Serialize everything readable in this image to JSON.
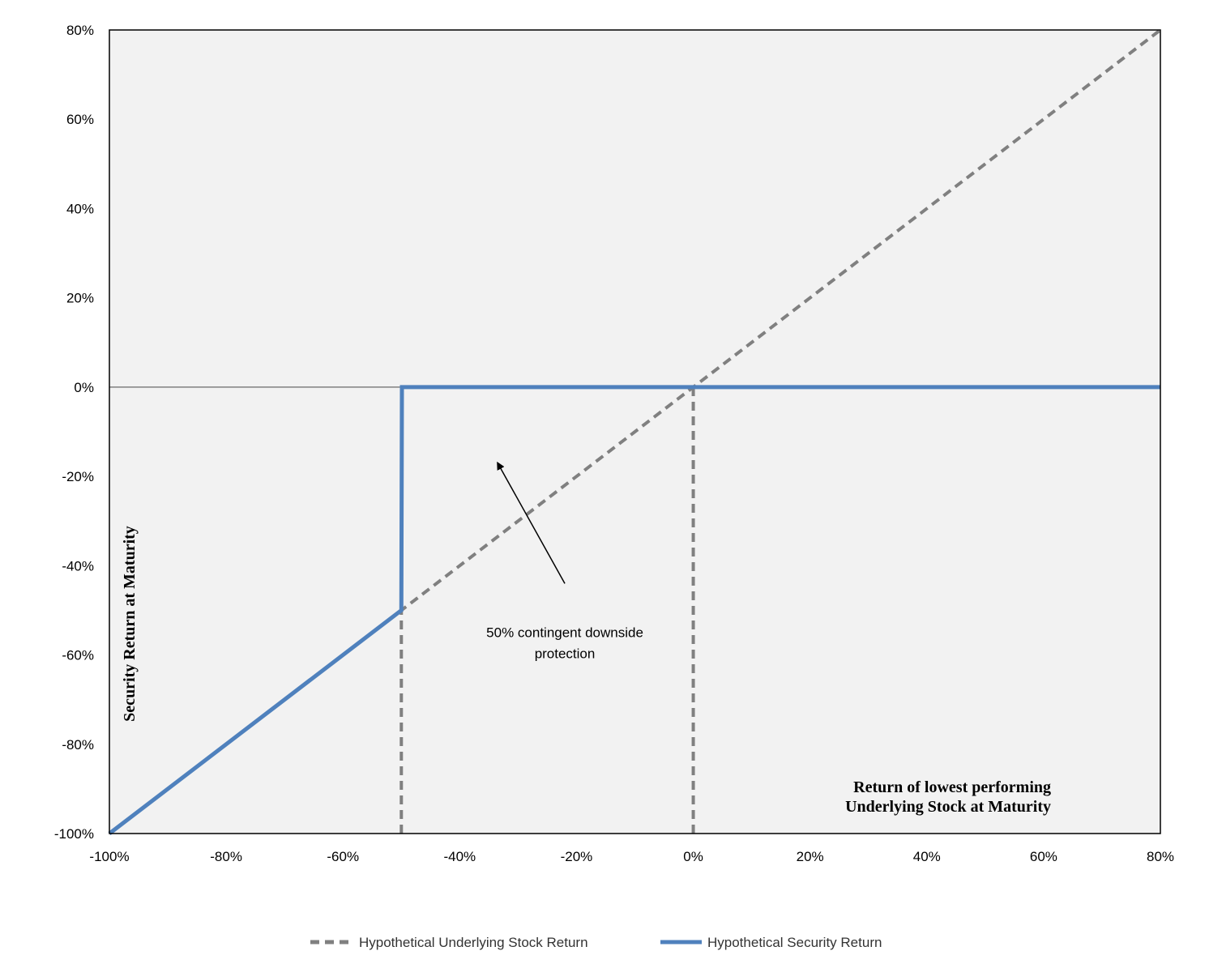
{
  "chart_data": {
    "type": "line",
    "title": "",
    "xlabel": "Return of lowest performing Underlying Stock at Maturity",
    "xlabel_lines": [
      "Return of lowest performing",
      "Underlying Stock at Maturity"
    ],
    "ylabel": "Security Return at Maturity",
    "xlim": [
      -100,
      80
    ],
    "ylim": [
      -100,
      80
    ],
    "x_ticks": [
      -100,
      -80,
      -60,
      -40,
      -20,
      0,
      20,
      40,
      60,
      80
    ],
    "y_ticks": [
      -100,
      -80,
      -60,
      -40,
      -20,
      0,
      20,
      40,
      60,
      80
    ],
    "x_tick_labels": [
      "-100%",
      "-80%",
      "-60%",
      "-40%",
      "-20%",
      "0%",
      "20%",
      "40%",
      "60%",
      "80%"
    ],
    "y_tick_labels": [
      "-100%",
      "-80%",
      "-60%",
      "-40%",
      "-20%",
      "0%",
      "20%",
      "40%",
      "60%",
      "80%"
    ],
    "grid": false,
    "legend_position": "bottom",
    "series": [
      {
        "name": "Hypothetical Underlying Stock Return",
        "style": "dashed",
        "color": "#808080",
        "x": [
          -100,
          80
        ],
        "y": [
          -100,
          80
        ]
      },
      {
        "name": "Hypothetical Security Return",
        "style": "solid",
        "color": "#4f81bd",
        "x": [
          -100,
          -50,
          -49.9,
          80
        ],
        "y": [
          -100,
          -50,
          0,
          0
        ]
      }
    ],
    "reference_lines": [
      {
        "type": "vertical",
        "x": -50,
        "y_range": [
          -100,
          -50
        ],
        "style": "dashed",
        "color": "#808080"
      },
      {
        "type": "vertical",
        "x": 0,
        "y_range": [
          -100,
          0
        ],
        "style": "dashed",
        "color": "#808080"
      }
    ],
    "annotations": [
      {
        "text_lines": [
          "50% contingent downside",
          "protection"
        ],
        "text_at": [
          -22,
          -56
        ],
        "arrow_from": [
          -22,
          -44
        ],
        "arrow_to": [
          -33.5,
          -17
        ]
      }
    ],
    "colors": {
      "plot_bg": "#f2f2f2",
      "underlying": "#808080",
      "security": "#4f81bd"
    }
  }
}
